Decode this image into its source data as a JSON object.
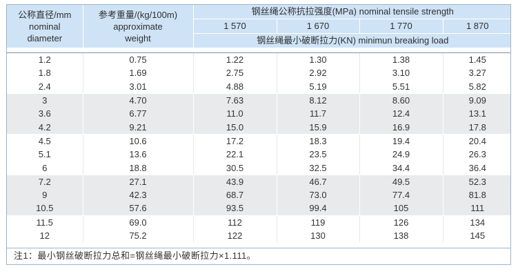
{
  "header": {
    "diameter_lines": [
      "公称直径/mm",
      "nominal",
      "diameter"
    ],
    "weight_lines": [
      "参考重量/(kg/100m)",
      "approximate",
      "weight"
    ],
    "strength_title": "钢丝绳公称抗拉强度(MPa) nominal tensile strength",
    "grades": [
      "1 570",
      "1 670",
      "1 770",
      "1 870"
    ],
    "breaking_title": "钢丝绳最小破断拉力(KN) minimun breaking load"
  },
  "rows": [
    {
      "d": "1.2",
      "w": "0.75",
      "v": [
        "1.22",
        "1.30",
        "1.38",
        "1.45"
      ]
    },
    {
      "d": "1.8",
      "w": "1.69",
      "v": [
        "2.75",
        "2.92",
        "3.10",
        "3.27"
      ]
    },
    {
      "d": "2.4",
      "w": "3.01",
      "v": [
        "4.88",
        "5.19",
        "5.51",
        "5.82"
      ]
    },
    {
      "d": "3",
      "w": "4.70",
      "v": [
        "7.63",
        "8.12",
        "8.60",
        "9.09"
      ]
    },
    {
      "d": "3.6",
      "w": "6.77",
      "v": [
        "11.0",
        "11.7",
        "12.4",
        "13.1"
      ]
    },
    {
      "d": "4.2",
      "w": "9.21",
      "v": [
        "15.0",
        "15.9",
        "16.9",
        "17.8"
      ]
    },
    {
      "d": "4.5",
      "w": "10.6",
      "v": [
        "17.2",
        "18.3",
        "19.4",
        "20.4"
      ]
    },
    {
      "d": "5.1",
      "w": "13.6",
      "v": [
        "22.1",
        "23.5",
        "24.9",
        "26.3"
      ]
    },
    {
      "d": "6",
      "w": "18.8",
      "v": [
        "30.5",
        "32.5",
        "34.4",
        "36.4"
      ]
    },
    {
      "d": "7.2",
      "w": "27.1",
      "v": [
        "43.9",
        "46.7",
        "49.5",
        "52.3"
      ]
    },
    {
      "d": "9",
      "w": "42.3",
      "v": [
        "68.7",
        "73.0",
        "77.4",
        "81.8"
      ]
    },
    {
      "d": "10.5",
      "w": "57.6",
      "v": [
        "93.5",
        "99.4",
        "105",
        "111"
      ]
    },
    {
      "d": "11.5",
      "w": "69.0",
      "v": [
        "112",
        "119",
        "126",
        "134"
      ]
    },
    {
      "d": "12",
      "w": "75.2",
      "v": [
        "122",
        "130",
        "138",
        "145"
      ]
    }
  ],
  "note": "注1：最小钢丝破断拉力总和=钢丝绳最小破断拉力×1.111。",
  "colors": {
    "header_bg": "#cfe3f6",
    "band_gray": "#e9eaec",
    "border": "#9fb3c8"
  }
}
